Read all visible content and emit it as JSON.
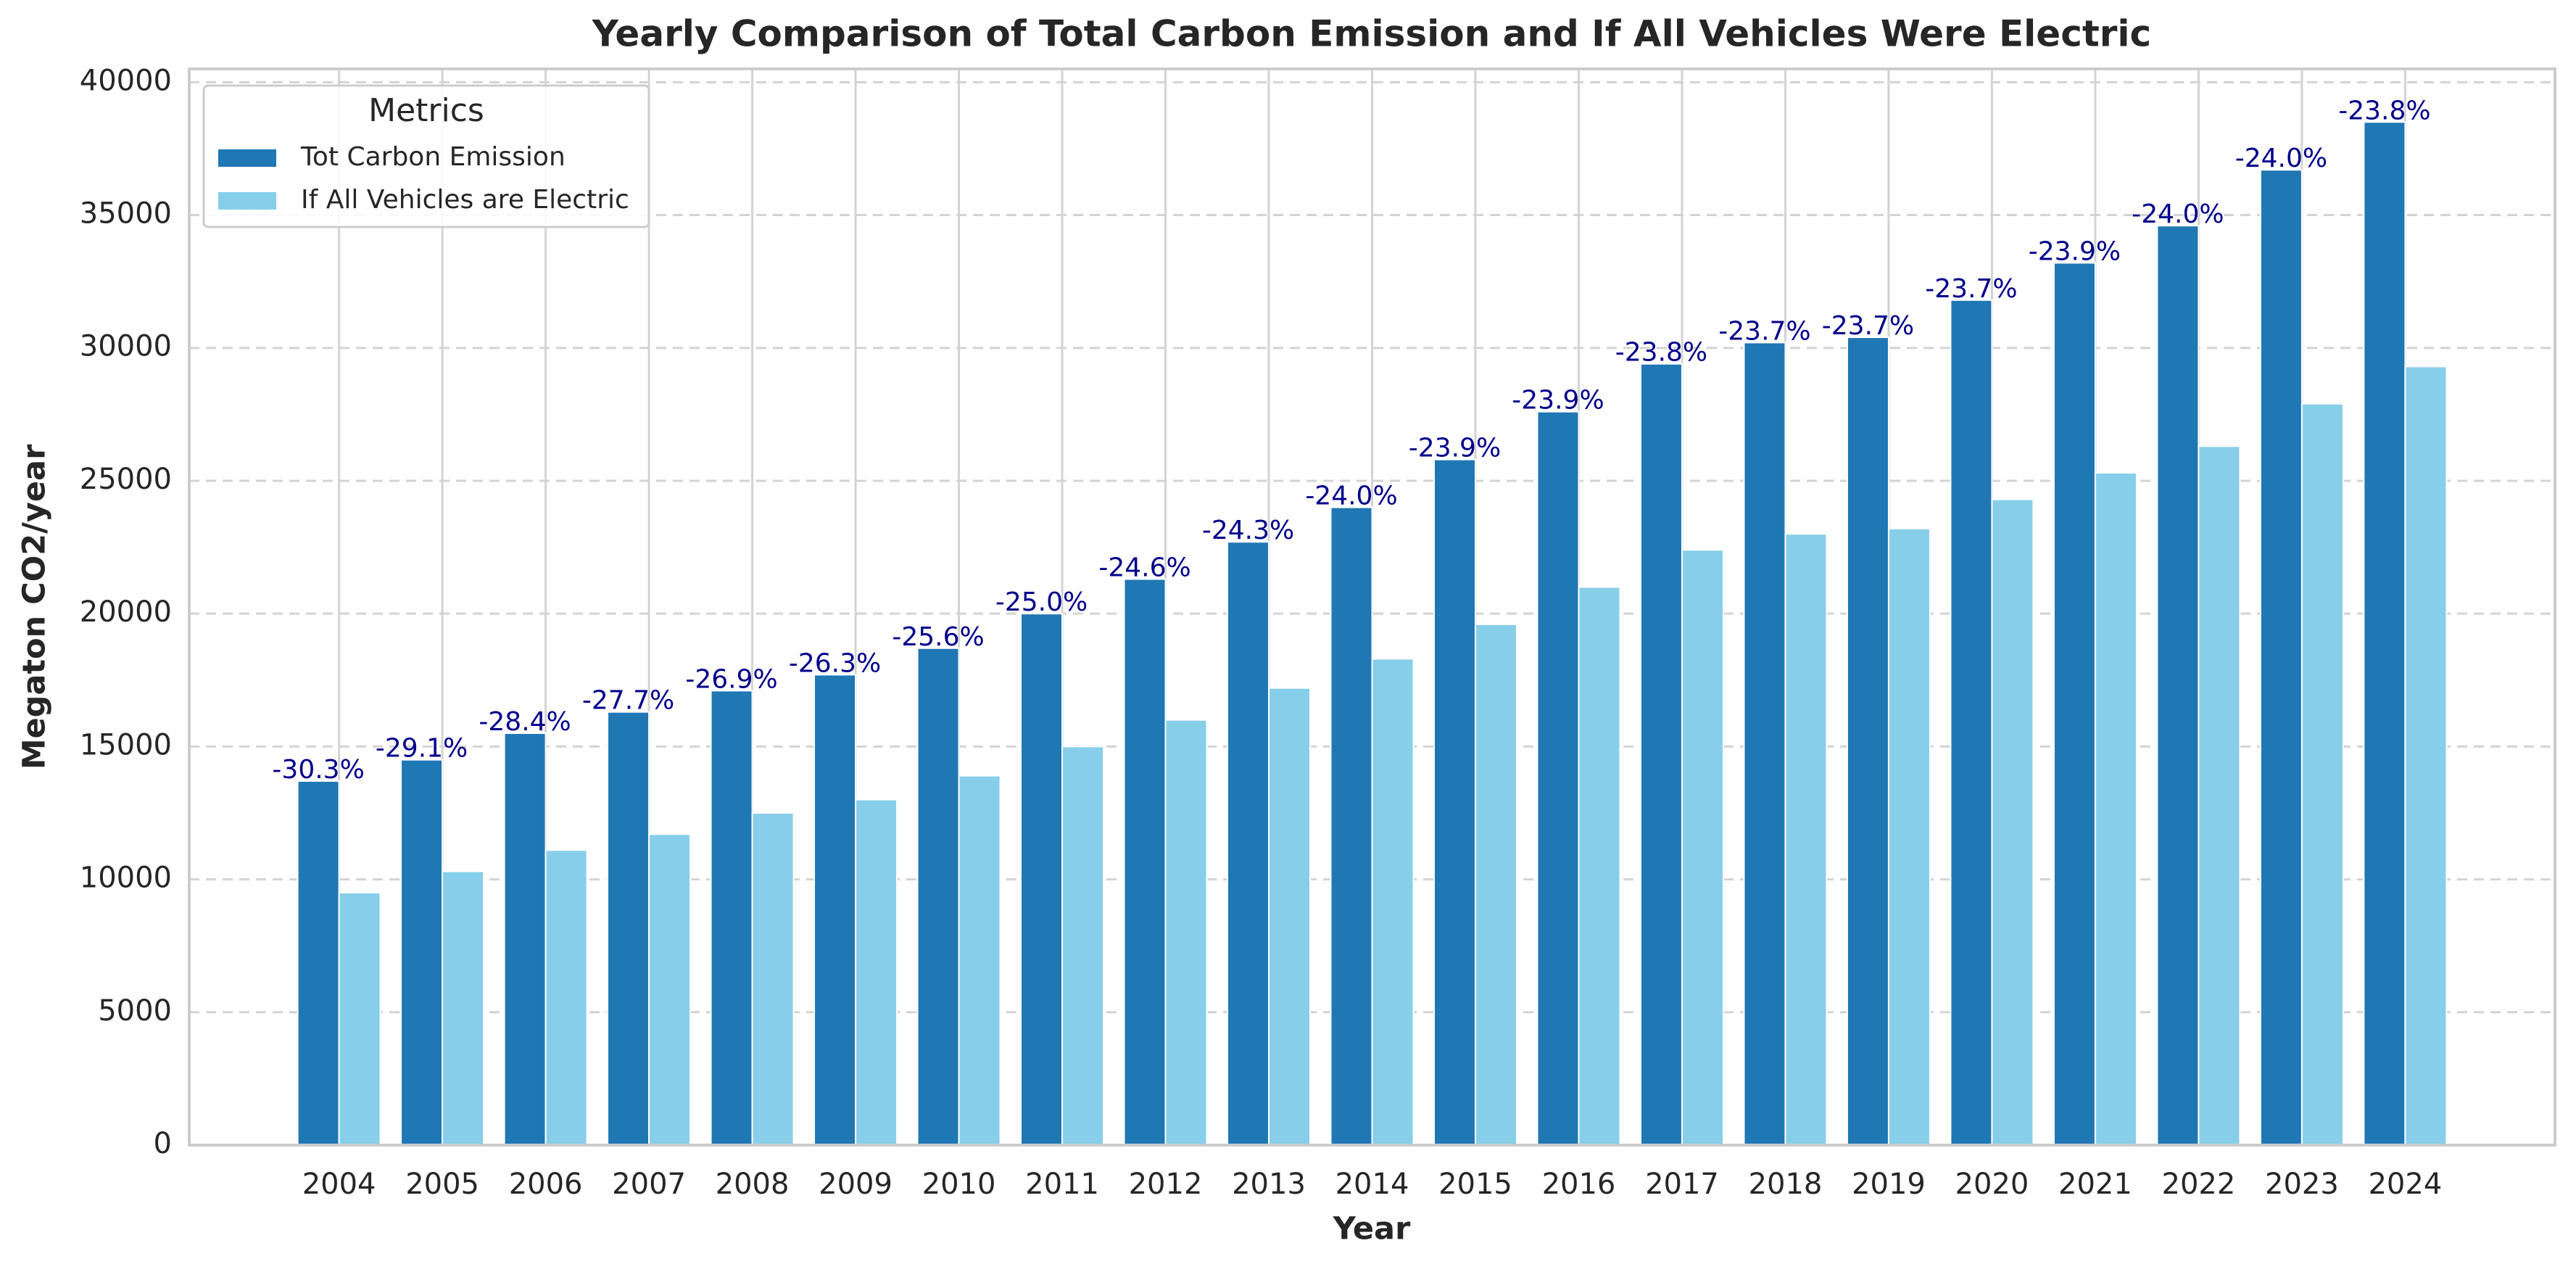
{
  "chart_data": {
    "type": "bar",
    "title": "Yearly Comparison of Total Carbon Emission and If All Vehicles Were Electric",
    "x_label": "Year",
    "y_label": "Megaton CO2/year",
    "categories": [
      "2004",
      "2005",
      "2006",
      "2007",
      "2008",
      "2009",
      "2010",
      "2011",
      "2012",
      "2013",
      "2014",
      "2015",
      "2016",
      "2017",
      "2018",
      "2019",
      "2020",
      "2021",
      "2022",
      "2023",
      "2024"
    ],
    "series": [
      {
        "name": "Tot Carbon Emission",
        "color": "#1f77b4",
        "values": [
          13700,
          14500,
          15500,
          16300,
          17100,
          17700,
          18700,
          20000,
          21300,
          22700,
          24000,
          25800,
          27600,
          29400,
          30200,
          30400,
          31800,
          33200,
          34600,
          36700,
          38500
        ]
      },
      {
        "name": "If All Vehicles are Electric",
        "color": "#87ceeb",
        "values": [
          9500,
          10300,
          11100,
          11700,
          12500,
          13000,
          13900,
          15000,
          16000,
          17200,
          18300,
          19600,
          21000,
          22400,
          23000,
          23200,
          24300,
          25300,
          26300,
          27900,
          29300
        ]
      }
    ],
    "annotations": [
      "-30.3%",
      "-29.1%",
      "-28.4%",
      "-27.7%",
      "-26.9%",
      "-26.3%",
      "-25.6%",
      "-25.0%",
      "-24.6%",
      "-24.3%",
      "-24.0%",
      "-23.9%",
      "-23.9%",
      "-23.8%",
      "-23.7%",
      "-23.7%",
      "-23.7%",
      "-23.9%",
      "-24.0%",
      "-24.0%",
      "-23.8%"
    ],
    "annotation_color": "#00008b",
    "legend_title": "Metrics",
    "legend": "upper left",
    "ylim": [
      0,
      40500
    ],
    "yticks": [
      0,
      5000,
      10000,
      15000,
      20000,
      25000,
      30000,
      35000,
      40000
    ],
    "grid": true
  }
}
